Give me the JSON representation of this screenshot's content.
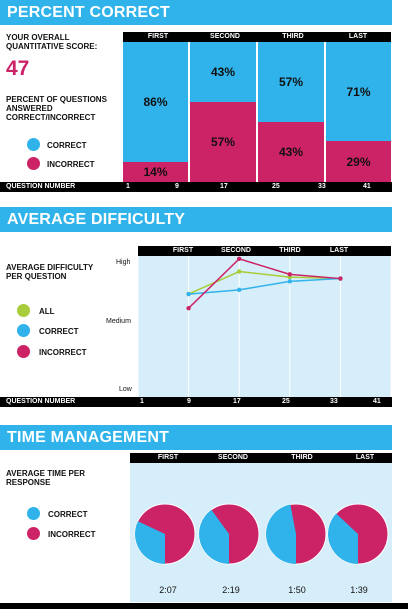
{
  "colors": {
    "correct": "#2fb3ea",
    "incorrect": "#cc2266",
    "all": "#a8cc3a",
    "banner": "#2fb3ea",
    "panel": "#d6eef9"
  },
  "percent_correct": {
    "title": "PERCENT CORRECT",
    "score_label": "YOUR OVERALL QUANTITATIVE SCORE:",
    "score": "47",
    "pct_label": "PERCENT OF QUESTIONS ANSWERED CORRECT/INCORRECT",
    "legend": {
      "correct": "CORRECT",
      "incorrect": "INCORRECT"
    },
    "columns": [
      "FIRST",
      "SECOND",
      "THIRD",
      "LAST"
    ],
    "axis_label": "QUESTION NUMBER",
    "ticks": [
      "1",
      "9",
      "17",
      "25",
      "33",
      "41"
    ]
  },
  "average_difficulty": {
    "title": "AVERAGE DIFFICULTY",
    "label": "AVERAGE DIFFICULTY PER QUESTION",
    "legend": {
      "all": "ALL",
      "correct": "CORRECT",
      "incorrect": "INCORRECT"
    },
    "columns": [
      "FIRST",
      "SECOND",
      "THIRD",
      "LAST"
    ],
    "y_ticks": [
      "High",
      "Medium",
      "Low"
    ],
    "axis_label": "QUESTION NUMBER",
    "ticks": [
      "1",
      "9",
      "17",
      "25",
      "33",
      "41"
    ]
  },
  "time_management": {
    "title": "TIME MANAGEMENT",
    "label": "AVERAGE TIME PER RESPONSE",
    "legend": {
      "correct": "CORRECT",
      "incorrect": "INCORRECT"
    },
    "columns": [
      "FIRST",
      "SECOND",
      "THIRD",
      "LAST"
    ],
    "times": [
      "2:07",
      "2:19",
      "1:50",
      "1:39"
    ]
  },
  "chart_data": [
    {
      "type": "bar",
      "stacked": true,
      "title": "PERCENT CORRECT",
      "categories": [
        "FIRST",
        "SECOND",
        "THIRD",
        "LAST"
      ],
      "series": [
        {
          "name": "CORRECT",
          "values": [
            86,
            43,
            57,
            71
          ]
        },
        {
          "name": "INCORRECT",
          "values": [
            14,
            57,
            43,
            29
          ]
        }
      ],
      "xlabel": "QUESTION NUMBER",
      "x_ticks": [
        "1",
        "9",
        "17",
        "25",
        "33",
        "41"
      ],
      "ylim": [
        0,
        100
      ]
    },
    {
      "type": "line",
      "title": "AVERAGE DIFFICULTY",
      "x": [
        9,
        17,
        25,
        33
      ],
      "series": [
        {
          "name": "ALL",
          "values": [
            0.73,
            0.89,
            0.85,
            0.84
          ]
        },
        {
          "name": "CORRECT",
          "values": [
            0.73,
            0.76,
            0.82,
            0.84
          ]
        },
        {
          "name": "INCORRECT",
          "values": [
            0.63,
            0.98,
            0.87,
            0.84
          ]
        }
      ],
      "y_ticks": [
        "High",
        "Medium",
        "Low"
      ],
      "xlabel": "QUESTION NUMBER",
      "x_ticks": [
        "1",
        "9",
        "17",
        "25",
        "33",
        "41"
      ],
      "ylim": [
        0,
        1
      ],
      "grid": true
    },
    {
      "type": "pie",
      "title": "TIME MANAGEMENT",
      "categories": [
        "FIRST",
        "SECOND",
        "THIRD",
        "LAST"
      ],
      "series": [
        {
          "name": "CORRECT",
          "values": [
            0.32,
            0.4,
            0.47,
            0.37
          ]
        },
        {
          "name": "INCORRECT",
          "values": [
            0.68,
            0.6,
            0.53,
            0.63
          ]
        }
      ],
      "labels": [
        "2:07",
        "2:19",
        "1:50",
        "1:39"
      ]
    }
  ]
}
